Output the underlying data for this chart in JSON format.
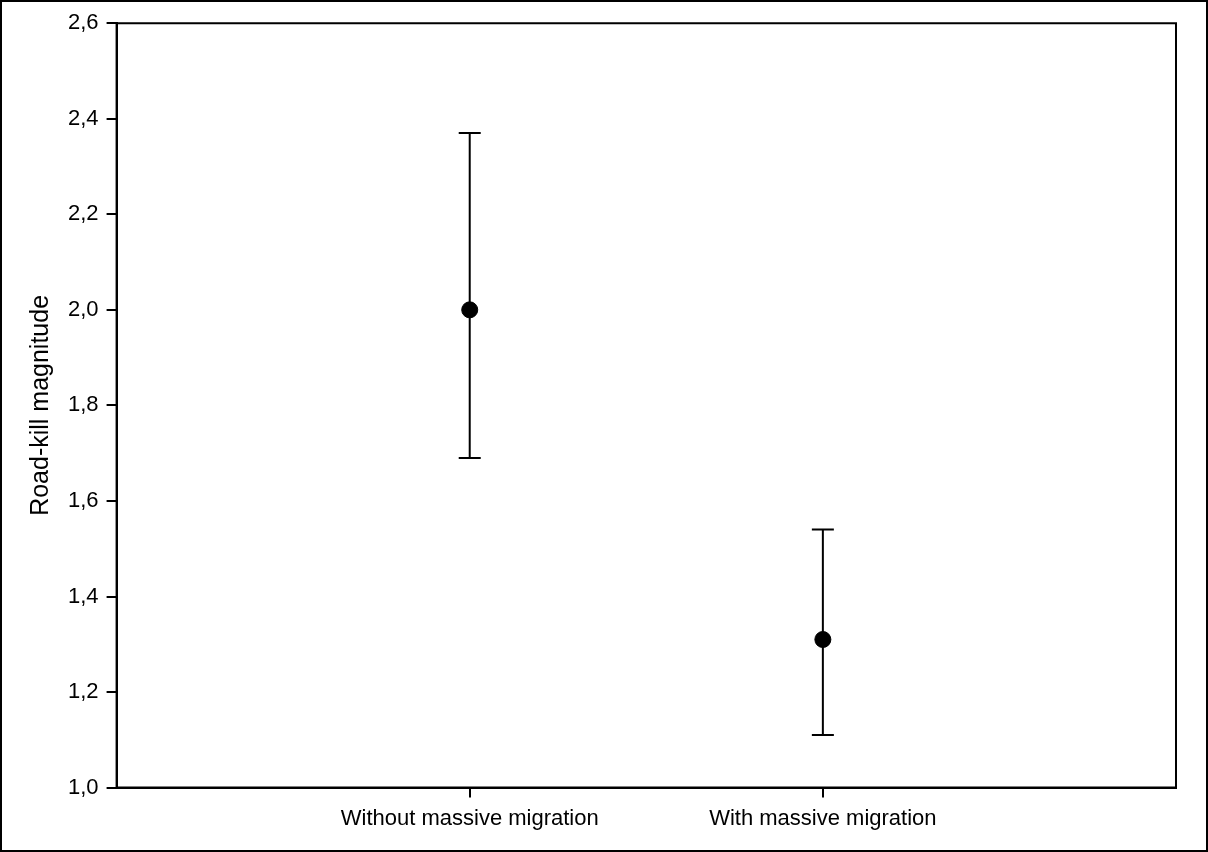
{
  "chart_data": {
    "type": "scatter",
    "ylabel": "Road-kill magnitude",
    "categories": [
      "Without massive migration",
      "With massive migration"
    ],
    "series": [
      {
        "color": "#000000",
        "values": [
          2.0,
          1.31
        ],
        "errors": [
          [
            1.69,
            2.37
          ],
          [
            1.11,
            1.54
          ]
        ]
      }
    ],
    "ylim": [
      1.0,
      2.6
    ],
    "yticks": [
      {
        "value": 1.0,
        "label": "1,0"
      },
      {
        "value": 1.2,
        "label": "1,2"
      },
      {
        "value": 1.4,
        "label": "1,4"
      },
      {
        "value": 1.6,
        "label": "1,6"
      },
      {
        "value": 1.8,
        "label": "1,8"
      },
      {
        "value": 2.0,
        "label": "2,0"
      },
      {
        "value": 2.2,
        "label": "2,2"
      },
      {
        "value": 2.4,
        "label": "2,4"
      },
      {
        "value": 2.6,
        "label": "2,6"
      }
    ],
    "marker": "circle",
    "grid": false,
    "legend": false
  }
}
